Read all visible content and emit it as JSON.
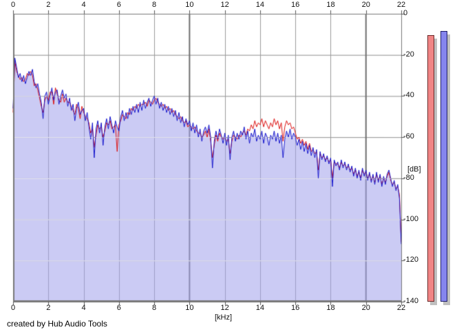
{
  "footer": {
    "credit": "created by Hub Audio Tools"
  },
  "axes": {
    "x_unit_label": "[kHz]",
    "y_unit_label": "[dB]",
    "x_ticks": [
      0,
      2,
      4,
      6,
      8,
      10,
      12,
      14,
      16,
      18,
      20,
      22
    ],
    "y_ticks": [
      0,
      -20,
      -40,
      -60,
      -80,
      -100,
      -120,
      -140
    ]
  },
  "colors": {
    "background": "#ffffff",
    "fill_rgba": "rgba(160,160,235,0.55)",
    "trace_red": "#dd1111",
    "trace_blue": "#1414cc",
    "grid_h": "#909090",
    "grid_v_minor": "#9a9a9a",
    "grid_v_major": "#6e6e6e",
    "grid_over_fill": "rgba(255,255,255,0.8)",
    "border": "#777777",
    "tick": "#555555",
    "meter_shadow": "#bfbfbf"
  },
  "meters": {
    "shadow_color": "#bfbfbf",
    "bars": [
      {
        "name": "meter-left",
        "fill": "#f08585",
        "border": "#6a2a2a",
        "value_db": -10.3
      },
      {
        "name": "meter-right",
        "fill": "#8585ee",
        "border": "#1e1e66",
        "value_db": -8.3
      }
    ]
  },
  "chart_data": {
    "type": "area",
    "title": "",
    "xlabel": "[kHz]",
    "ylabel": "[dB]",
    "x_range": [
      0,
      22
    ],
    "y_range": [
      -140,
      0
    ],
    "x_start": 0,
    "x_step": 0.1,
    "grid": true,
    "series": [
      {
        "name": "spectrum-red",
        "color": "#dd1111",
        "values": [
          -48,
          -23,
          -28,
          -30,
          -32,
          -31,
          -33,
          -32,
          -29,
          -30,
          -28,
          -30,
          -35,
          -34,
          -37,
          -41,
          -45,
          -48,
          -42,
          -40,
          -42,
          -38,
          -38,
          -44,
          -36,
          -39,
          -42,
          -43,
          -39,
          -43,
          -41,
          -43,
          -43,
          -45,
          -47,
          -49,
          -44,
          -46,
          -51,
          -45,
          -48,
          -50,
          -51,
          -53,
          -58,
          -56,
          -65,
          -59,
          -54,
          -56,
          -55,
          -60,
          -57,
          -53,
          -54,
          -52,
          -56,
          -55,
          -54,
          -67,
          -54,
          -52,
          -49,
          -50,
          -51,
          -48,
          -49,
          -46,
          -47,
          -45,
          -46,
          -44,
          -45,
          -44,
          -44,
          -43,
          -45,
          -42,
          -43,
          -44,
          -42,
          -41,
          -43,
          -44,
          -45,
          -44,
          -46,
          -45,
          -47,
          -46,
          -48,
          -47,
          -49,
          -50,
          -51,
          -50,
          -52,
          -53,
          -52,
          -55,
          -54,
          -55,
          -56,
          -55,
          -57,
          -58,
          -58,
          -60,
          -59,
          -57,
          -60,
          -56,
          -62,
          -70,
          -64,
          -59,
          -62,
          -58,
          -60,
          -61,
          -60,
          -62,
          -61,
          -68,
          -62,
          -59,
          -60,
          -61,
          -59,
          -60,
          -58,
          -57,
          -59,
          -56,
          -57,
          -54,
          -56,
          -52,
          -55,
          -53,
          -54,
          -51,
          -55,
          -52,
          -54,
          -56,
          -53,
          -55,
          -51,
          -54,
          -52,
          -56,
          -53,
          -62,
          -55,
          -52,
          -54,
          -53,
          -56,
          -55,
          -58,
          -61,
          -60,
          -63,
          -61,
          -64,
          -62,
          -66,
          -63,
          -67,
          -66,
          -68,
          -67,
          -76,
          -68,
          -70,
          -69,
          -71,
          -70,
          -72,
          -71,
          -80,
          -72,
          -73,
          -73,
          -75,
          -72,
          -74,
          -73,
          -75,
          -74,
          -76,
          -75,
          -78,
          -76,
          -79,
          -77,
          -80,
          -76,
          -78,
          -77,
          -80,
          -78,
          -81,
          -79,
          -82,
          -78,
          -81,
          -79,
          -83,
          -80,
          -82,
          -79,
          -77,
          -81,
          -83,
          -82,
          -85,
          -84,
          -88,
          -111
        ]
      },
      {
        "name": "spectrum-blue",
        "color": "#1414cc",
        "fill": "rgba(160,160,235,0.55)",
        "values": [
          -46,
          -21.5,
          -26,
          -31,
          -29,
          -33,
          -30,
          -34,
          -31,
          -28,
          -30,
          -27,
          -33,
          -36,
          -34,
          -39,
          -43,
          -51,
          -40,
          -38,
          -44,
          -40,
          -36,
          -42,
          -38,
          -37,
          -44,
          -40,
          -37,
          -41,
          -39,
          -45,
          -41,
          -47,
          -44,
          -52,
          -46,
          -43,
          -49,
          -47,
          -46,
          -52,
          -48,
          -55,
          -61,
          -53,
          -70,
          -56,
          -52,
          -58,
          -53,
          -64,
          -55,
          -51,
          -56,
          -50,
          -54,
          -58,
          -52,
          -55,
          -57,
          -50,
          -47,
          -52,
          -48,
          -51,
          -46,
          -49,
          -45,
          -48,
          -44,
          -48,
          -43,
          -47,
          -42,
          -46,
          -43,
          -41,
          -45,
          -42,
          -40,
          -44,
          -41,
          -46,
          -43,
          -47,
          -44,
          -48,
          -45,
          -49,
          -46,
          -50,
          -47,
          -52,
          -48,
          -53,
          -50,
          -55,
          -51,
          -54,
          -52,
          -57,
          -53,
          -58,
          -54,
          -60,
          -56,
          -62,
          -57,
          -55,
          -58,
          -54,
          -60,
          -75,
          -62,
          -57,
          -61,
          -56,
          -59,
          -63,
          -58,
          -64,
          -59,
          -71,
          -60,
          -57,
          -62,
          -58,
          -61,
          -57,
          -59,
          -55,
          -61,
          -57,
          -63,
          -58,
          -60,
          -56,
          -62,
          -59,
          -61,
          -57,
          -63,
          -58,
          -60,
          -64,
          -59,
          -61,
          -57,
          -62,
          -58,
          -63,
          -59,
          -70,
          -61,
          -57,
          -60,
          -56,
          -61,
          -58,
          -60,
          -64,
          -61,
          -66,
          -62,
          -67,
          -63,
          -68,
          -64,
          -69,
          -65,
          -70,
          -66,
          -80,
          -67,
          -71,
          -68,
          -72,
          -69,
          -73,
          -70,
          -84,
          -71,
          -74,
          -72,
          -76,
          -71,
          -75,
          -72,
          -76,
          -73,
          -77,
          -74,
          -79,
          -75,
          -80,
          -76,
          -81,
          -75,
          -79,
          -76,
          -81,
          -77,
          -82,
          -78,
          -83,
          -77,
          -82,
          -78,
          -84,
          -79,
          -83,
          -78,
          -76,
          -80,
          -84,
          -81,
          -86,
          -83,
          -90,
          -112
        ]
      }
    ]
  }
}
